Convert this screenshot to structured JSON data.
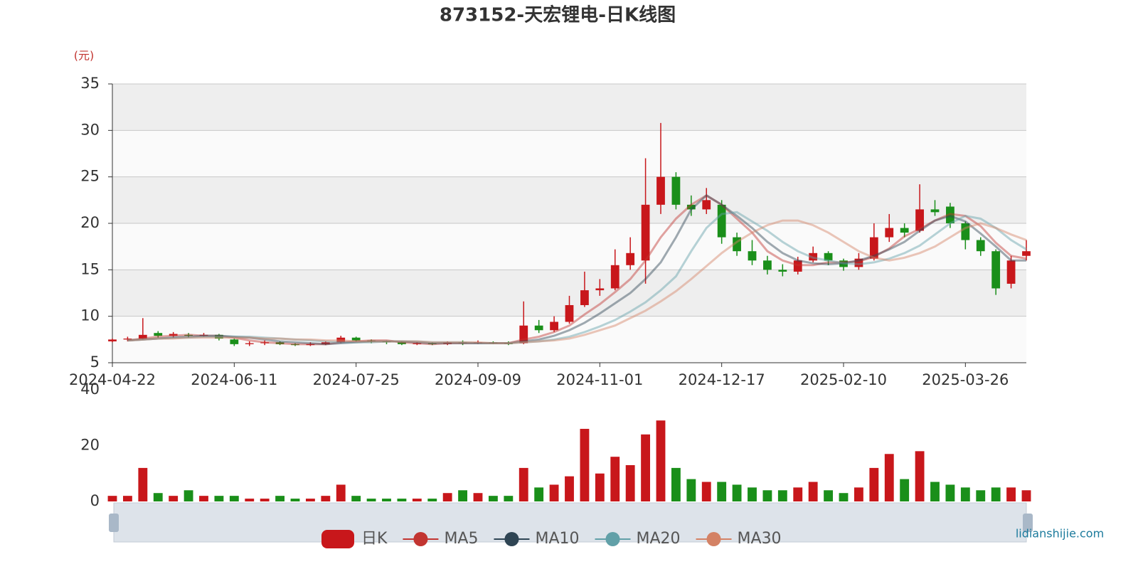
{
  "chart_data": [
    {
      "type": "candlestick",
      "title": "873152-天宏锂电-日K线图",
      "y_label": "(元)",
      "categories": [
        "2024-04-22",
        null,
        null,
        null,
        null,
        null,
        null,
        null,
        "2024-06-11",
        null,
        null,
        null,
        null,
        null,
        null,
        null,
        "2024-07-25",
        null,
        null,
        null,
        null,
        null,
        null,
        null,
        "2024-09-09",
        null,
        null,
        null,
        null,
        null,
        null,
        null,
        "2024-11-01",
        null,
        null,
        null,
        null,
        null,
        null,
        null,
        "2024-12-17",
        null,
        null,
        null,
        null,
        null,
        null,
        null,
        "2025-02-10",
        null,
        null,
        null,
        null,
        null,
        null,
        null,
        "2025-03-26",
        null,
        null,
        null,
        null
      ],
      "ylim": [
        5,
        35
      ],
      "yticks": [
        5,
        10,
        15,
        20,
        25,
        30,
        35
      ],
      "grid": true,
      "band_colors": [
        "#fafafa",
        "#eeeeee"
      ],
      "series": [
        {
          "name": "日K",
          "up_color": "#c8171b",
          "down_color": "#1a8f1a",
          "values": [
            [
              7.3,
              7.5,
              7.2,
              7.6
            ],
            [
              7.5,
              7.6,
              7.3,
              7.8
            ],
            [
              7.6,
              8.0,
              7.5,
              9.8
            ],
            [
              8.2,
              7.9,
              7.7,
              8.4
            ],
            [
              7.9,
              8.1,
              7.7,
              8.3
            ],
            [
              8.0,
              7.9,
              7.7,
              8.2
            ],
            [
              7.9,
              8.0,
              7.8,
              8.2
            ],
            [
              8.0,
              7.6,
              7.4,
              8.1
            ],
            [
              7.5,
              7.0,
              6.8,
              7.6
            ],
            [
              7.0,
              7.1,
              6.8,
              7.3
            ],
            [
              7.1,
              7.2,
              6.9,
              7.4
            ],
            [
              7.2,
              7.0,
              6.9,
              7.3
            ],
            [
              7.0,
              6.9,
              6.8,
              7.1
            ],
            [
              6.9,
              7.0,
              6.8,
              7.2
            ],
            [
              7.0,
              7.2,
              6.9,
              7.3
            ],
            [
              7.2,
              7.7,
              7.1,
              7.9
            ],
            [
              7.7,
              7.4,
              7.3,
              7.8
            ],
            [
              7.4,
              7.3,
              7.1,
              7.5
            ],
            [
              7.3,
              7.2,
              7.0,
              7.4
            ],
            [
              7.2,
              7.0,
              6.9,
              7.3
            ],
            [
              7.0,
              7.1,
              6.9,
              7.2
            ],
            [
              7.1,
              7.0,
              6.9,
              7.2
            ],
            [
              7.0,
              7.2,
              6.9,
              7.3
            ],
            [
              7.2,
              7.1,
              6.9,
              7.4
            ],
            [
              7.1,
              7.2,
              7.0,
              7.4
            ],
            [
              7.2,
              7.1,
              7.0,
              7.3
            ],
            [
              7.1,
              7.0,
              6.9,
              7.3
            ],
            [
              7.1,
              9.0,
              7.0,
              11.6
            ],
            [
              9.0,
              8.5,
              8.2,
              9.6
            ],
            [
              8.5,
              9.4,
              8.3,
              10.0
            ],
            [
              9.4,
              11.2,
              9.2,
              12.2
            ],
            [
              11.2,
              12.8,
              11.0,
              14.8
            ],
            [
              12.8,
              13.0,
              12.2,
              14.0
            ],
            [
              13.0,
              15.5,
              12.8,
              17.2
            ],
            [
              15.5,
              16.8,
              15.0,
              18.5
            ],
            [
              16.0,
              22.0,
              13.5,
              27.0
            ],
            [
              22.0,
              25.0,
              21.0,
              30.8
            ],
            [
              25.0,
              22.0,
              21.5,
              25.5
            ],
            [
              22.0,
              21.5,
              20.8,
              23.0
            ],
            [
              21.5,
              22.5,
              21.0,
              23.8
            ],
            [
              22.0,
              18.5,
              17.8,
              22.5
            ],
            [
              18.5,
              17.0,
              16.5,
              19.0
            ],
            [
              17.0,
              16.0,
              15.5,
              18.2
            ],
            [
              16.0,
              15.0,
              14.5,
              16.5
            ],
            [
              15.0,
              14.8,
              14.3,
              15.6
            ],
            [
              14.8,
              16.0,
              14.5,
              16.4
            ],
            [
              16.0,
              16.8,
              15.8,
              17.5
            ],
            [
              16.8,
              16.0,
              15.5,
              17.0
            ],
            [
              16.0,
              15.3,
              14.9,
              16.2
            ],
            [
              15.3,
              16.2,
              15.0,
              16.8
            ],
            [
              16.2,
              18.5,
              16.0,
              20.0
            ],
            [
              18.5,
              19.5,
              18.0,
              21.0
            ],
            [
              19.5,
              19.0,
              18.5,
              20.0
            ],
            [
              19.2,
              21.5,
              19.0,
              24.2
            ],
            [
              21.5,
              21.2,
              20.8,
              22.5
            ],
            [
              21.8,
              20.0,
              19.5,
              22.2
            ],
            [
              20.0,
              18.2,
              17.2,
              20.2
            ],
            [
              18.2,
              17.0,
              16.5,
              18.5
            ],
            [
              17.0,
              13.0,
              12.3,
              17.2
            ],
            [
              13.5,
              16.0,
              13.0,
              16.5
            ],
            [
              16.5,
              17.0,
              16.0,
              18.2
            ]
          ]
        },
        {
          "name": "MA5",
          "color": "#c23531",
          "values": [
            null,
            7.4,
            7.6,
            7.8,
            7.9,
            8.0,
            7.9,
            7.9,
            7.7,
            7.4,
            7.2,
            7.1,
            7.0,
            7.0,
            7.0,
            7.2,
            7.3,
            7.4,
            7.4,
            7.2,
            7.1,
            7.0,
            7.1,
            7.1,
            7.1,
            7.1,
            7.1,
            7.5,
            7.8,
            8.3,
            9.0,
            10.2,
            11.3,
            12.6,
            14.0,
            16.0,
            18.5,
            20.5,
            22.0,
            23.0,
            22.0,
            20.5,
            19.0,
            17.0,
            16.0,
            15.5,
            15.5,
            15.8,
            15.8,
            15.9,
            16.4,
            17.3,
            18.6,
            19.4,
            20.3,
            21.0,
            20.8,
            19.7,
            17.9,
            16.5,
            16.2
          ]
        },
        {
          "name": "MA10",
          "color": "#2f4554",
          "values": [
            null,
            7.4,
            7.5,
            7.6,
            7.7,
            7.8,
            7.9,
            7.9,
            7.8,
            7.7,
            7.5,
            7.3,
            7.2,
            7.1,
            7.0,
            7.1,
            7.2,
            7.3,
            7.3,
            7.3,
            7.2,
            7.1,
            7.1,
            7.1,
            7.1,
            7.1,
            7.1,
            7.3,
            7.5,
            7.9,
            8.5,
            9.3,
            10.3,
            11.4,
            12.5,
            14.0,
            15.8,
            18.5,
            21.5,
            23.0,
            22.0,
            20.8,
            19.5,
            18.0,
            16.8,
            16.0,
            15.7,
            15.6,
            15.7,
            16.0,
            16.5,
            17.2,
            18.0,
            19.2,
            20.3,
            20.8,
            20.2,
            18.9,
            17.5,
            16.0,
            16.0
          ]
        },
        {
          "name": "MA20",
          "color": "#61a0a8",
          "values": [
            null,
            7.4,
            7.5,
            7.6,
            7.7,
            7.7,
            7.8,
            7.8,
            7.8,
            7.8,
            7.7,
            7.6,
            7.5,
            7.4,
            7.3,
            7.2,
            7.2,
            7.2,
            7.3,
            7.3,
            7.3,
            7.2,
            7.2,
            7.2,
            7.1,
            7.1,
            7.1,
            7.2,
            7.3,
            7.5,
            7.8,
            8.3,
            8.9,
            9.6,
            10.5,
            11.5,
            12.8,
            14.3,
            17.0,
            19.5,
            21.0,
            21.2,
            20.2,
            19.2,
            18.0,
            17.0,
            16.3,
            16.0,
            15.7,
            15.6,
            15.8,
            16.2,
            16.8,
            17.6,
            18.8,
            20.0,
            20.8,
            20.5,
            19.5,
            18.2,
            17.2
          ]
        },
        {
          "name": "MA30",
          "color": "#d48265",
          "values": [
            null,
            7.4,
            7.5,
            7.6,
            7.6,
            7.7,
            7.7,
            7.7,
            7.7,
            7.7,
            7.6,
            7.6,
            7.5,
            7.5,
            7.4,
            7.4,
            7.3,
            7.3,
            7.3,
            7.3,
            7.3,
            7.2,
            7.2,
            7.2,
            7.2,
            7.1,
            7.1,
            7.2,
            7.3,
            7.4,
            7.6,
            8.0,
            8.5,
            9.0,
            9.8,
            10.6,
            11.6,
            12.7,
            14.0,
            15.4,
            16.8,
            18.0,
            19.0,
            19.8,
            20.3,
            20.3,
            19.8,
            19.0,
            18.0,
            17.0,
            16.3,
            16.0,
            16.3,
            16.8,
            17.5,
            18.5,
            19.5,
            20.0,
            19.5,
            18.8,
            18.2
          ]
        }
      ]
    },
    {
      "type": "volume",
      "ylim": [
        0,
        40
      ],
      "yticks": [
        0,
        20,
        40
      ],
      "values": [
        2,
        2,
        12,
        3,
        2,
        4,
        2,
        2,
        2,
        1,
        1,
        2,
        1,
        1,
        2,
        6,
        2,
        1,
        1,
        1,
        1,
        1,
        3,
        4,
        3,
        2,
        2,
        12,
        5,
        6,
        9,
        26,
        10,
        16,
        13,
        24,
        29,
        12,
        8,
        7,
        7,
        6,
        5,
        4,
        4,
        5,
        7,
        4,
        3,
        5,
        12,
        17,
        8,
        18,
        7,
        6,
        5,
        4,
        5,
        5,
        4
      ]
    },
    {
      "type": "watermark",
      "text": "lidianshijie.com"
    }
  ]
}
